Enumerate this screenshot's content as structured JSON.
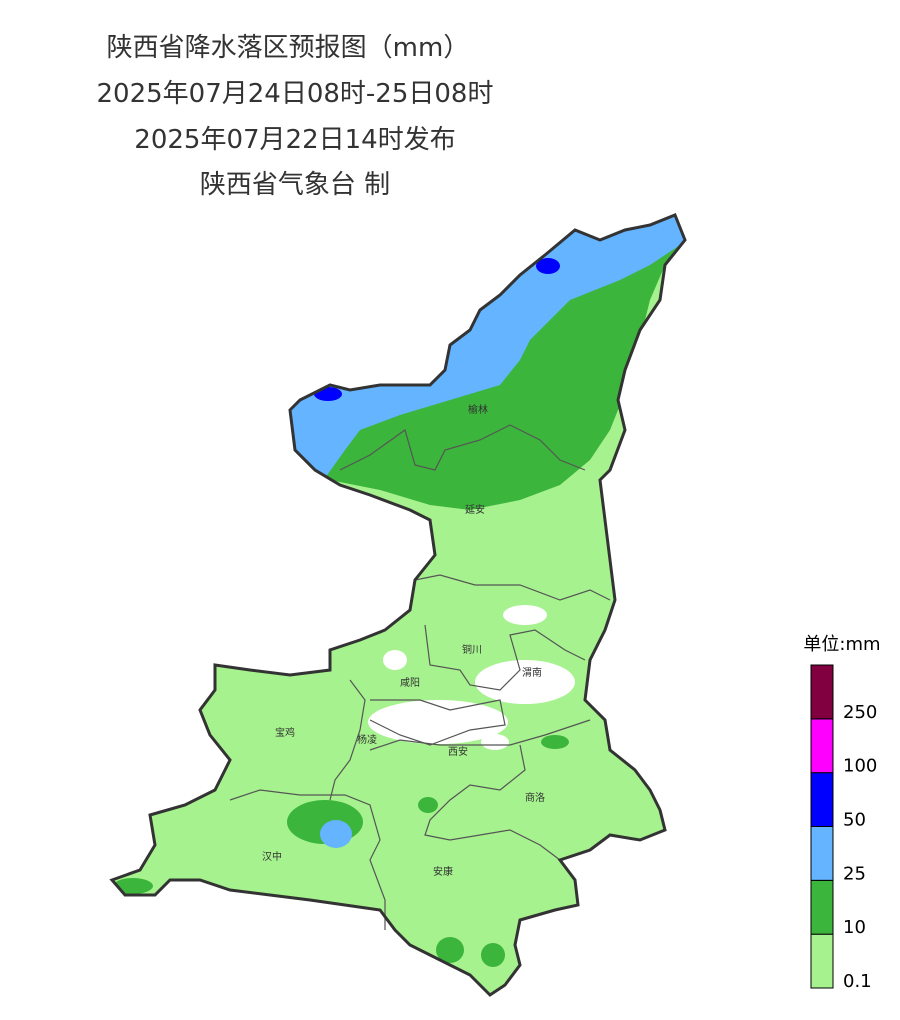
{
  "header": {
    "title": "陕西省降水落区预报图（mm）",
    "period": "2025年07月24日08时-25日08时",
    "issued": "2025年07月22日14时发布",
    "agency": "陕西省气象台 制"
  },
  "map": {
    "cities": [
      "榆林",
      "延安",
      "铜川",
      "咸阳",
      "渭南",
      "宝鸡",
      "杨凌",
      "西安",
      "商洛",
      "汉中",
      "安康"
    ]
  },
  "legend": {
    "title": "单位:mm",
    "levels": [
      {
        "value": 0.1,
        "color": "#a6f28e"
      },
      {
        "value": 10,
        "color": "#3cb53c"
      },
      {
        "value": 25,
        "color": "#64b4ff"
      },
      {
        "value": 50,
        "color": "#0000fe"
      },
      {
        "value": 100,
        "color": "#fe00fe"
      },
      {
        "value": 250,
        "color": "#800040"
      }
    ]
  }
}
